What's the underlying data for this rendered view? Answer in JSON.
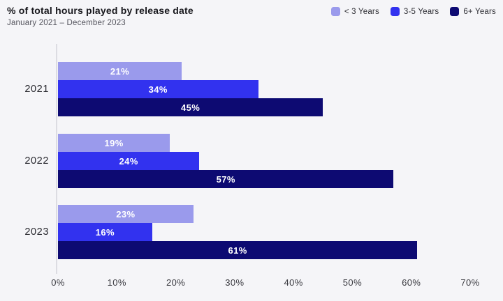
{
  "chart_data": {
    "type": "bar",
    "orientation": "horizontal",
    "title": "% of total hours played by release date",
    "subtitle": "January 2021 – December 2023",
    "categories": [
      "2021",
      "2022",
      "2023"
    ],
    "series": [
      {
        "name": "< 3 Years",
        "color": "#9a9aec",
        "values": [
          21,
          19,
          23
        ]
      },
      {
        "name": "3-5 Years",
        "color": "#3232ef",
        "values": [
          34,
          24,
          16
        ]
      },
      {
        "name": "6+ Years",
        "color": "#0d0a72",
        "values": [
          45,
          57,
          61
        ]
      }
    ],
    "value_suffix": "%",
    "xlim": [
      0,
      70
    ],
    "x_ticks": [
      "0%",
      "10%",
      "20%",
      "30%",
      "40%",
      "50%",
      "60%",
      "70%"
    ],
    "grid": "off",
    "legend_position": "top-right",
    "colors": {
      "background": "#f5f5f8",
      "axis_line": "#dcdce2",
      "bar_label_text": "#ffffff"
    }
  }
}
